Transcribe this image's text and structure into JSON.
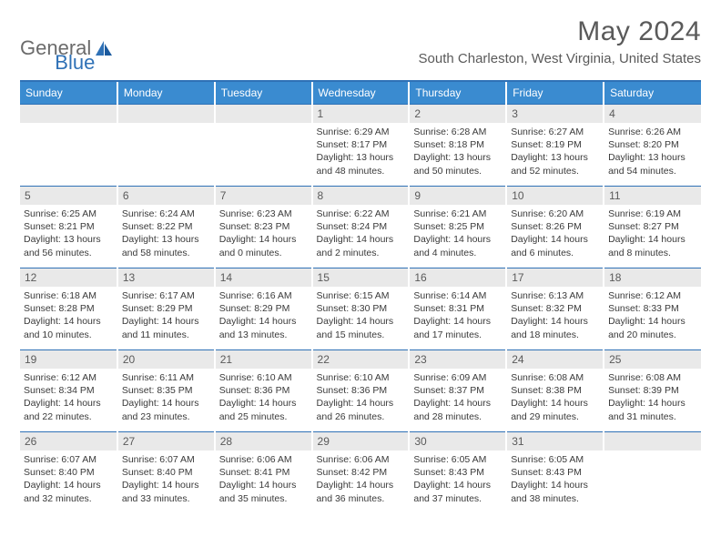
{
  "logo": {
    "word1": "General",
    "word2": "Blue"
  },
  "title": "May 2024",
  "location": "South Charleston, West Virginia, United States",
  "colors": {
    "header_bg": "#3a8bd0",
    "accent": "#2f71b6",
    "daynum_bg": "#e9e9e9",
    "text": "#3a3a3a"
  },
  "weekdays": [
    "Sunday",
    "Monday",
    "Tuesday",
    "Wednesday",
    "Thursday",
    "Friday",
    "Saturday"
  ],
  "weeks": [
    [
      {
        "n": "",
        "sr": "",
        "ss": "",
        "dl": ""
      },
      {
        "n": "",
        "sr": "",
        "ss": "",
        "dl": ""
      },
      {
        "n": "",
        "sr": "",
        "ss": "",
        "dl": ""
      },
      {
        "n": "1",
        "sr": "Sunrise: 6:29 AM",
        "ss": "Sunset: 8:17 PM",
        "dl": "Daylight: 13 hours and 48 minutes."
      },
      {
        "n": "2",
        "sr": "Sunrise: 6:28 AM",
        "ss": "Sunset: 8:18 PM",
        "dl": "Daylight: 13 hours and 50 minutes."
      },
      {
        "n": "3",
        "sr": "Sunrise: 6:27 AM",
        "ss": "Sunset: 8:19 PM",
        "dl": "Daylight: 13 hours and 52 minutes."
      },
      {
        "n": "4",
        "sr": "Sunrise: 6:26 AM",
        "ss": "Sunset: 8:20 PM",
        "dl": "Daylight: 13 hours and 54 minutes."
      }
    ],
    [
      {
        "n": "5",
        "sr": "Sunrise: 6:25 AM",
        "ss": "Sunset: 8:21 PM",
        "dl": "Daylight: 13 hours and 56 minutes."
      },
      {
        "n": "6",
        "sr": "Sunrise: 6:24 AM",
        "ss": "Sunset: 8:22 PM",
        "dl": "Daylight: 13 hours and 58 minutes."
      },
      {
        "n": "7",
        "sr": "Sunrise: 6:23 AM",
        "ss": "Sunset: 8:23 PM",
        "dl": "Daylight: 14 hours and 0 minutes."
      },
      {
        "n": "8",
        "sr": "Sunrise: 6:22 AM",
        "ss": "Sunset: 8:24 PM",
        "dl": "Daylight: 14 hours and 2 minutes."
      },
      {
        "n": "9",
        "sr": "Sunrise: 6:21 AM",
        "ss": "Sunset: 8:25 PM",
        "dl": "Daylight: 14 hours and 4 minutes."
      },
      {
        "n": "10",
        "sr": "Sunrise: 6:20 AM",
        "ss": "Sunset: 8:26 PM",
        "dl": "Daylight: 14 hours and 6 minutes."
      },
      {
        "n": "11",
        "sr": "Sunrise: 6:19 AM",
        "ss": "Sunset: 8:27 PM",
        "dl": "Daylight: 14 hours and 8 minutes."
      }
    ],
    [
      {
        "n": "12",
        "sr": "Sunrise: 6:18 AM",
        "ss": "Sunset: 8:28 PM",
        "dl": "Daylight: 14 hours and 10 minutes."
      },
      {
        "n": "13",
        "sr": "Sunrise: 6:17 AM",
        "ss": "Sunset: 8:29 PM",
        "dl": "Daylight: 14 hours and 11 minutes."
      },
      {
        "n": "14",
        "sr": "Sunrise: 6:16 AM",
        "ss": "Sunset: 8:29 PM",
        "dl": "Daylight: 14 hours and 13 minutes."
      },
      {
        "n": "15",
        "sr": "Sunrise: 6:15 AM",
        "ss": "Sunset: 8:30 PM",
        "dl": "Daylight: 14 hours and 15 minutes."
      },
      {
        "n": "16",
        "sr": "Sunrise: 6:14 AM",
        "ss": "Sunset: 8:31 PM",
        "dl": "Daylight: 14 hours and 17 minutes."
      },
      {
        "n": "17",
        "sr": "Sunrise: 6:13 AM",
        "ss": "Sunset: 8:32 PM",
        "dl": "Daylight: 14 hours and 18 minutes."
      },
      {
        "n": "18",
        "sr": "Sunrise: 6:12 AM",
        "ss": "Sunset: 8:33 PM",
        "dl": "Daylight: 14 hours and 20 minutes."
      }
    ],
    [
      {
        "n": "19",
        "sr": "Sunrise: 6:12 AM",
        "ss": "Sunset: 8:34 PM",
        "dl": "Daylight: 14 hours and 22 minutes."
      },
      {
        "n": "20",
        "sr": "Sunrise: 6:11 AM",
        "ss": "Sunset: 8:35 PM",
        "dl": "Daylight: 14 hours and 23 minutes."
      },
      {
        "n": "21",
        "sr": "Sunrise: 6:10 AM",
        "ss": "Sunset: 8:36 PM",
        "dl": "Daylight: 14 hours and 25 minutes."
      },
      {
        "n": "22",
        "sr": "Sunrise: 6:10 AM",
        "ss": "Sunset: 8:36 PM",
        "dl": "Daylight: 14 hours and 26 minutes."
      },
      {
        "n": "23",
        "sr": "Sunrise: 6:09 AM",
        "ss": "Sunset: 8:37 PM",
        "dl": "Daylight: 14 hours and 28 minutes."
      },
      {
        "n": "24",
        "sr": "Sunrise: 6:08 AM",
        "ss": "Sunset: 8:38 PM",
        "dl": "Daylight: 14 hours and 29 minutes."
      },
      {
        "n": "25",
        "sr": "Sunrise: 6:08 AM",
        "ss": "Sunset: 8:39 PM",
        "dl": "Daylight: 14 hours and 31 minutes."
      }
    ],
    [
      {
        "n": "26",
        "sr": "Sunrise: 6:07 AM",
        "ss": "Sunset: 8:40 PM",
        "dl": "Daylight: 14 hours and 32 minutes."
      },
      {
        "n": "27",
        "sr": "Sunrise: 6:07 AM",
        "ss": "Sunset: 8:40 PM",
        "dl": "Daylight: 14 hours and 33 minutes."
      },
      {
        "n": "28",
        "sr": "Sunrise: 6:06 AM",
        "ss": "Sunset: 8:41 PM",
        "dl": "Daylight: 14 hours and 35 minutes."
      },
      {
        "n": "29",
        "sr": "Sunrise: 6:06 AM",
        "ss": "Sunset: 8:42 PM",
        "dl": "Daylight: 14 hours and 36 minutes."
      },
      {
        "n": "30",
        "sr": "Sunrise: 6:05 AM",
        "ss": "Sunset: 8:43 PM",
        "dl": "Daylight: 14 hours and 37 minutes."
      },
      {
        "n": "31",
        "sr": "Sunrise: 6:05 AM",
        "ss": "Sunset: 8:43 PM",
        "dl": "Daylight: 14 hours and 38 minutes."
      },
      {
        "n": "",
        "sr": "",
        "ss": "",
        "dl": ""
      }
    ]
  ]
}
